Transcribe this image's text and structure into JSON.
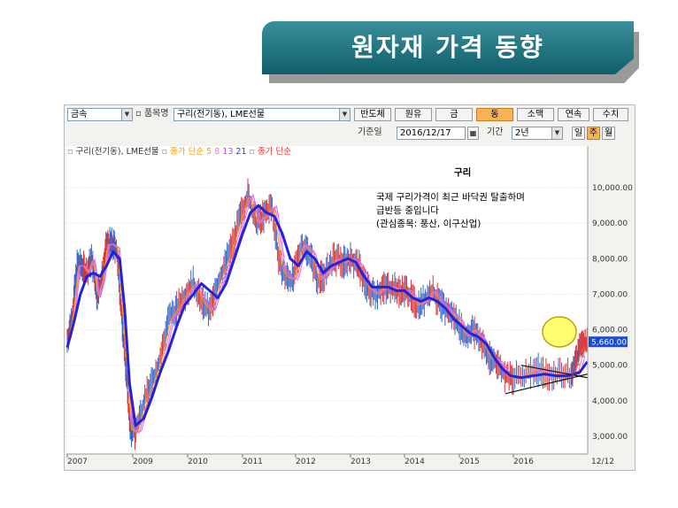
{
  "slide": {
    "title": "원자재 가격 동향"
  },
  "toolbar": {
    "category": "금속",
    "item_label": "품목명",
    "item_value": "구리(전기동), LME선물",
    "buttons": [
      "반도체",
      "원유",
      "금",
      "동",
      "소맥",
      "연속",
      "수치"
    ],
    "active_button": "동",
    "date_label": "기준일",
    "date_value": "2016/12/17",
    "period_label": "기간",
    "period_value": "2년",
    "freq_buttons": [
      "일",
      "주",
      "월"
    ],
    "active_freq": "주"
  },
  "legend": {
    "series_name": "구리(전기동), LME선물",
    "ma_label": "종가 단순",
    "ma_periods": [
      "5",
      "8",
      "13",
      "21"
    ],
    "ma2_label": "종가 단순",
    "colors": {
      "price": "#3366cc",
      "ma5": "#ff9900",
      "ma8": "#ff66cc",
      "ma13": "#cc66ff",
      "ma21": "#3333ff",
      "ma_label2": "#dd3333"
    }
  },
  "annotation": {
    "title": "구리",
    "line1": "국제 구리가격이 최근 바닥권 탈출하며",
    "line2": "급반등 중입니다",
    "line3": "(관심종목: 풍산, 이구산업)"
  },
  "chart_data": {
    "type": "line",
    "x_labels": [
      "2007",
      "2009",
      "2010",
      "2011",
      "2012",
      "2013",
      "2014",
      "2015",
      "2016",
      "12/12"
    ],
    "y_ticks": [
      "10,000.00",
      "9,000.00",
      "8,000.00",
      "7,000.00",
      "6,000.00",
      "5,000.00",
      "4,000.00",
      "3,000.00"
    ],
    "ylim": [
      2500,
      10800
    ],
    "current_value_label": "5,660.00",
    "current_value": 5660,
    "series": [
      {
        "name": "구리(전기동), LME선물",
        "t": [
          2007.0,
          2007.15,
          2007.3,
          2007.45,
          2007.6,
          2007.75,
          2007.9,
          2008.05,
          2008.2,
          2008.35,
          2008.5,
          2008.65,
          2008.8,
          2008.92,
          2009.05,
          2009.2,
          2009.35,
          2009.5,
          2009.65,
          2009.8,
          2009.95,
          2010.1,
          2010.25,
          2010.4,
          2010.55,
          2010.7,
          2010.85,
          2011.0,
          2011.1,
          2011.25,
          2011.4,
          2011.55,
          2011.7,
          2011.8,
          2011.95,
          2012.1,
          2012.25,
          2012.4,
          2012.55,
          2012.7,
          2012.85,
          2013.0,
          2013.15,
          2013.3,
          2013.45,
          2013.6,
          2013.75,
          2013.9,
          2014.05,
          2014.2,
          2014.35,
          2014.5,
          2014.65,
          2014.8,
          2014.95,
          2015.1,
          2015.25,
          2015.4,
          2015.55,
          2015.7,
          2015.85,
          2016.0,
          2016.15,
          2016.3,
          2016.45,
          2016.6,
          2016.75,
          2016.85,
          2016.95
        ],
        "values": [
          5700,
          6400,
          7800,
          7800,
          7600,
          8000,
          6900,
          7400,
          8400,
          8400,
          8300,
          6500,
          4800,
          3200,
          3100,
          4000,
          4500,
          5200,
          6300,
          6600,
          7000,
          7300,
          6800,
          6500,
          7300,
          7900,
          8600,
          9400,
          9800,
          9000,
          9200,
          9500,
          7800,
          7500,
          7400,
          8400,
          8200,
          7400,
          7600,
          8000,
          7900,
          8000,
          7800,
          7200,
          7000,
          7200,
          7200,
          7100,
          7100,
          6700,
          6800,
          7100,
          6700,
          6500,
          6300,
          5800,
          6000,
          5700,
          5200,
          5100,
          4700,
          4600,
          4750,
          4900,
          4700,
          4800,
          4700,
          5500,
          5660
        ]
      },
      {
        "name": "MA21",
        "t": [
          2007.0,
          2007.2,
          2007.4,
          2007.6,
          2007.8,
          2008.0,
          2008.2,
          2008.4,
          2008.6,
          2008.75,
          2008.9,
          2009.05,
          2009.2,
          2009.35,
          2009.5,
          2009.65,
          2009.8,
          2009.95,
          2010.1,
          2010.25,
          2010.4,
          2010.55,
          2010.7,
          2010.85,
          2011.0,
          2011.15,
          2011.3,
          2011.45,
          2011.6,
          2011.75,
          2011.9,
          2012.05,
          2012.2,
          2012.35,
          2012.5,
          2012.65,
          2012.8,
          2012.95,
          2013.1,
          2013.25,
          2013.4,
          2013.55,
          2013.7,
          2013.85,
          2014.0,
          2014.15,
          2014.3,
          2014.45,
          2014.6,
          2014.75,
          2014.9,
          2015.05,
          2015.2,
          2015.35,
          2015.5,
          2015.65,
          2015.8,
          2015.95,
          2016.1,
          2016.25,
          2016.4,
          2016.55,
          2016.7,
          2016.85,
          2016.95
        ],
        "values": [
          5500,
          6200,
          7000,
          7500,
          7600,
          7500,
          7800,
          8200,
          8000,
          6600,
          4500,
          3300,
          3500,
          4100,
          4800,
          5400,
          6100,
          6700,
          7000,
          7300,
          7100,
          6900,
          7300,
          8000,
          8700,
          9300,
          9500,
          9300,
          9200,
          8700,
          8000,
          7800,
          8200,
          8000,
          7600,
          7800,
          7900,
          8000,
          7900,
          7500,
          7200,
          7200,
          7200,
          7100,
          7100,
          6900,
          6800,
          6900,
          6800,
          6600,
          6300,
          6100,
          5900,
          5800,
          5600,
          5200,
          4900,
          4700,
          4650,
          4700,
          4750,
          4700,
          4700,
          4800,
          5100
        ]
      }
    ],
    "triangle_lines": [
      {
        "t": [
          2015.85,
          2016.95
        ],
        "values": [
          4200,
          4750
        ]
      },
      {
        "t": [
          2016.1,
          2016.95
        ],
        "values": [
          5000,
          4650
        ]
      }
    ]
  }
}
